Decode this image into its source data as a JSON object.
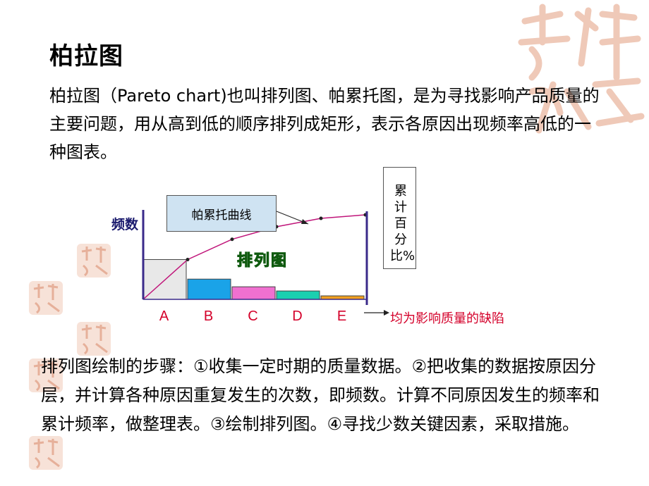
{
  "title": "柏拉图",
  "intro": "柏拉图（Pareto chart)也叫排列图、帕累托图，是为寻找影响产品质量的主要问题，用从高到低的顺序排列成矩形，表示各原因出现频率高低的一种图表。",
  "steps": "排列图绘制的步骤：①收集一定时期的质量数据。②把收集的数据按原因分层，并计算各种原因重复发生的次数，即频数。计算不同原因发生的频率和累计频率，做整理表。③绘制排列图。④寻找少数关键因素，采取措施。",
  "chart_data": {
    "type": "bar",
    "title": "排列图",
    "categories": [
      "A",
      "B",
      "C",
      "D",
      "E"
    ],
    "values": [
      57,
      29,
      18,
      12,
      5
    ],
    "bar_colors": [
      "#e8e8e8",
      "#1aa3e8",
      "#f070d0",
      "#1ad0b0",
      "#f0a020"
    ],
    "curve_label": "帕累托曲线",
    "ylabel": "频数",
    "y2label": "累计百分比%",
    "cumulative_color": "#c0157a",
    "axis_color": "#3a2a8a",
    "note": "均为影响质量的缺陷"
  }
}
